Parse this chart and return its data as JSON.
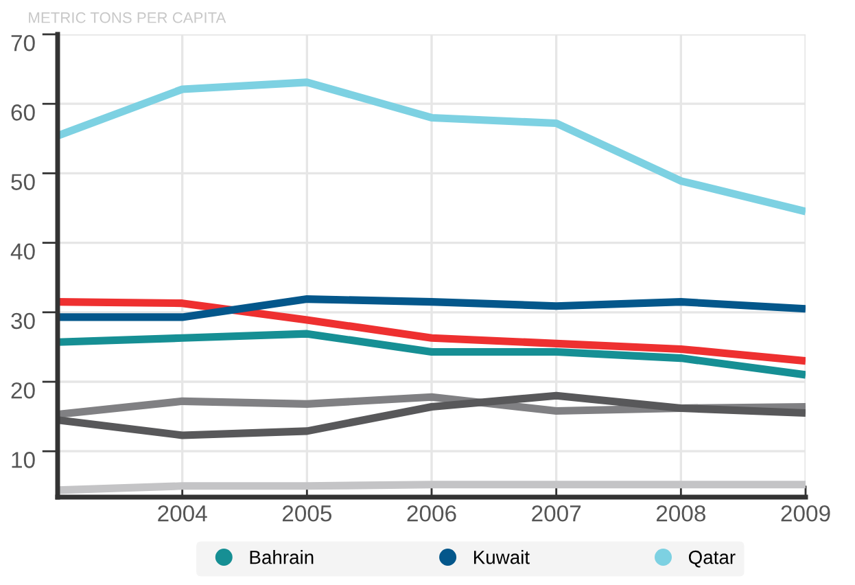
{
  "chart_data": {
    "type": "line",
    "title": "METRIC TONS PER CAPITA",
    "x": [
      2003,
      2004,
      2005,
      2006,
      2007,
      2008,
      2009
    ],
    "series": [
      {
        "color": "#ee3030",
        "values": [
          31.5,
          31.3,
          28.9,
          26.3,
          25.5,
          24.7,
          23.0
        ]
      },
      {
        "name": "Bahrain",
        "color": "#168f94",
        "values": [
          25.7,
          26.3,
          26.9,
          24.3,
          24.3,
          23.4,
          21.0
        ]
      },
      {
        "name": "Kuwait",
        "color": "#04578b",
        "values": [
          29.3,
          29.3,
          31.9,
          31.5,
          30.9,
          31.5,
          30.5
        ]
      },
      {
        "name": "Qatar",
        "color": "#7dd1e2",
        "values": [
          55.4,
          62.1,
          63.1,
          58.0,
          57.2,
          48.9,
          44.5
        ]
      },
      {
        "color": "#808083",
        "values": [
          15.3,
          17.2,
          16.8,
          17.8,
          15.8,
          16.2,
          16.4
        ]
      },
      {
        "color": "#58585a",
        "values": [
          14.5,
          12.3,
          12.9,
          16.4,
          18.0,
          16.2,
          15.5
        ]
      },
      {
        "color": "#c4c4c6",
        "values": [
          4.4,
          5.0,
          5.0,
          5.2,
          5.2,
          5.2,
          5.2
        ]
      }
    ],
    "xlim": [
      2003,
      2009
    ],
    "xticks": [
      {
        "value": 2003,
        "label": null
      },
      2004,
      2005,
      2006,
      2007,
      2008,
      2009
    ],
    "ylim": [
      3.4,
      70
    ],
    "yticks": [
      10,
      20,
      30,
      40,
      50,
      60,
      70
    ],
    "grid": true,
    "legend": "bottom",
    "marker": "none",
    "line_style": "solid"
  }
}
